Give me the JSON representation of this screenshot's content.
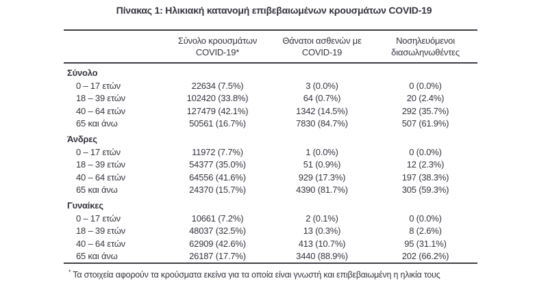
{
  "title": "Πίνακας 1: Ηλικιακή κατανομή επιβεβαιωμένων κρουσμάτων COVID-19",
  "colors": {
    "text": "#34343e",
    "rule": "#3e3e44",
    "background": "#ffffff"
  },
  "table": {
    "col_headers": [
      {
        "line1": "Σύνολο κρουσμάτων",
        "line2": "COVID-19*"
      },
      {
        "line1": "Θάνατοι ασθενών με",
        "line2": "COVID-19"
      },
      {
        "line1": "Νοσηλευόμενοι",
        "line2": "διασωληνωθέντες"
      }
    ],
    "sections": [
      {
        "label": "Σύνολο",
        "rows": [
          {
            "label": "0 – 17 ετών",
            "values": [
              "22634 (7.5%)",
              "3 (0.0%)",
              "0 (0.0%)"
            ]
          },
          {
            "label": "18 – 39 ετών",
            "values": [
              "102420 (33.8%)",
              "64 (0.7%)",
              "20 (2.4%)"
            ]
          },
          {
            "label": "40 – 64 ετών",
            "values": [
              "127479 (42.1%)",
              "1342 (14.5%)",
              "292 (35.7%)"
            ]
          },
          {
            "label": "65 και άνω",
            "values": [
              "50561 (16.7%)",
              "7830 (84.7%)",
              "507 (61.9%)"
            ]
          }
        ]
      },
      {
        "label": "Άνδρες",
        "rows": [
          {
            "label": "0 – 17 ετών",
            "values": [
              "11972 (7.7%)",
              "1 (0.0%)",
              "0 (0.0%)"
            ]
          },
          {
            "label": "18 – 39 ετών",
            "values": [
              "54377 (35.0%)",
              "51 (0.9%)",
              "12 (2.3%)"
            ]
          },
          {
            "label": "40 – 64 ετών",
            "values": [
              "64556 (41.6%)",
              "929 (17.3%)",
              "197 (38.3%)"
            ]
          },
          {
            "label": "65 και άνω",
            "values": [
              "24370 (15.7%)",
              "4390 (81.7%)",
              "305 (59.3%)"
            ]
          }
        ]
      },
      {
        "label": "Γυναίκες",
        "rows": [
          {
            "label": "0 – 17 ετών",
            "values": [
              "10661 (7.2%)",
              "2 (0.1%)",
              "0 (0.0%)"
            ]
          },
          {
            "label": "18 – 39 ετών",
            "values": [
              "48037 (32.5%)",
              "13 (0.3%)",
              "8 (2.6%)"
            ]
          },
          {
            "label": "40 – 64 ετών",
            "values": [
              "62909 (42.6%)",
              "413 (10.7%)",
              "95 (31.1%)"
            ]
          },
          {
            "label": "65 και άνω",
            "values": [
              "26187 (17.7%)",
              "3440 (88.9%)",
              "202 (66.2%)"
            ]
          }
        ]
      }
    ]
  },
  "footnote": {
    "marker": "*",
    "text": "Τα στοιχεία αφορούν τα κρούσματα εκείνα για τα οποία είναι γνωστή και επιβεβαιωμένη η ηλικία τους"
  }
}
